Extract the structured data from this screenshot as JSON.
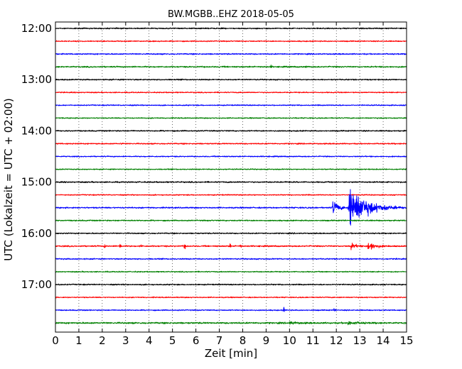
{
  "chart_data": {
    "type": "line",
    "title": "BW.MGBB..EHZ 2018-05-05",
    "xlabel": "Zeit  [min]",
    "ylabel": "UTC (Lokalzeit = UTC + 02:00)",
    "xlim": [
      0,
      15
    ],
    "x_ticks": [
      0,
      1,
      2,
      3,
      4,
      5,
      6,
      7,
      8,
      9,
      10,
      11,
      12,
      13,
      14,
      15
    ],
    "x_tick_labels": [
      "0",
      "1",
      "2",
      "3",
      "4",
      "5",
      "6",
      "7",
      "8",
      "9",
      "10",
      "11",
      "12",
      "13",
      "14",
      "15"
    ],
    "y_tick_labels": [
      "12:00",
      "13:00",
      "14:00",
      "15:00",
      "16:00",
      "17:00"
    ],
    "vertical_grid": "dotted",
    "trace_interval_min": 15,
    "trace_color_cycle": [
      "#000000",
      "#ff0000",
      "#0000ff",
      "#008000"
    ],
    "traces": [
      {
        "start": "12:00",
        "color": "#000000",
        "noise": 0.9,
        "events": []
      },
      {
        "start": "12:15",
        "color": "#ff0000",
        "noise": 0.8,
        "events": []
      },
      {
        "start": "12:30",
        "color": "#0000ff",
        "noise": 0.9,
        "events": []
      },
      {
        "start": "12:45",
        "color": "#008000",
        "noise": 1.0,
        "events": [
          {
            "t": 9.2,
            "amp": 3,
            "dur": 0.05
          },
          {
            "t": 10.7,
            "amp": 3,
            "dur": 0.04
          }
        ]
      },
      {
        "start": "13:00",
        "color": "#000000",
        "noise": 0.9,
        "events": []
      },
      {
        "start": "13:15",
        "color": "#ff0000",
        "noise": 0.8,
        "events": []
      },
      {
        "start": "13:30",
        "color": "#0000ff",
        "noise": 0.8,
        "events": []
      },
      {
        "start": "13:45",
        "color": "#008000",
        "noise": 0.8,
        "events": []
      },
      {
        "start": "14:00",
        "color": "#000000",
        "noise": 0.9,
        "events": []
      },
      {
        "start": "14:15",
        "color": "#ff0000",
        "noise": 0.9,
        "events": [
          {
            "t": 2.8,
            "amp": 2.5,
            "dur": 0.05
          }
        ]
      },
      {
        "start": "14:30",
        "color": "#0000ff",
        "noise": 0.8,
        "events": []
      },
      {
        "start": "14:45",
        "color": "#008000",
        "noise": 0.8,
        "events": []
      },
      {
        "start": "15:00",
        "color": "#000000",
        "noise": 1.0,
        "events": []
      },
      {
        "start": "15:15",
        "color": "#ff0000",
        "noise": 0.8,
        "events": []
      },
      {
        "start": "15:30",
        "color": "#0000ff",
        "noise": 1.0,
        "events": [
          {
            "t": 11.85,
            "amp": 14,
            "dur": 0.6
          },
          {
            "t": 12.55,
            "amp": 48,
            "dur": 1.7
          }
        ]
      },
      {
        "start": "15:45",
        "color": "#008000",
        "noise": 0.9,
        "events": []
      },
      {
        "start": "16:00",
        "color": "#000000",
        "noise": 0.9,
        "events": []
      },
      {
        "start": "16:15",
        "color": "#ff0000",
        "noise": 1.0,
        "events": [
          {
            "t": 2.1,
            "amp": 4,
            "dur": 0.05
          },
          {
            "t": 2.75,
            "amp": 6,
            "dur": 0.08
          },
          {
            "t": 3.65,
            "amp": 4,
            "dur": 0.05
          },
          {
            "t": 5.5,
            "amp": 6,
            "dur": 0.08
          },
          {
            "t": 7.45,
            "amp": 5,
            "dur": 0.06
          },
          {
            "t": 7.9,
            "amp": 4,
            "dur": 0.05
          },
          {
            "t": 12.6,
            "amp": 7,
            "dur": 0.5
          },
          {
            "t": 13.35,
            "amp": 10,
            "dur": 0.7
          }
        ]
      },
      {
        "start": "16:30",
        "color": "#0000ff",
        "noise": 0.9,
        "events": []
      },
      {
        "start": "16:45",
        "color": "#008000",
        "noise": 0.8,
        "events": []
      },
      {
        "start": "17:00",
        "color": "#000000",
        "noise": 0.9,
        "events": []
      },
      {
        "start": "17:15",
        "color": "#ff0000",
        "noise": 0.8,
        "events": []
      },
      {
        "start": "17:30",
        "color": "#0000ff",
        "noise": 0.8,
        "events": [
          {
            "t": 9.75,
            "amp": 6,
            "dur": 0.06
          },
          {
            "t": 11.9,
            "amp": 2.5,
            "dur": 0.1
          }
        ]
      },
      {
        "start": "17:45",
        "color": "#008000",
        "noise": 1.2,
        "events": [
          {
            "t": 10.0,
            "amp": 2.5,
            "dur": 0.8
          },
          {
            "t": 12.5,
            "amp": 3,
            "dur": 1.0
          }
        ]
      }
    ]
  }
}
